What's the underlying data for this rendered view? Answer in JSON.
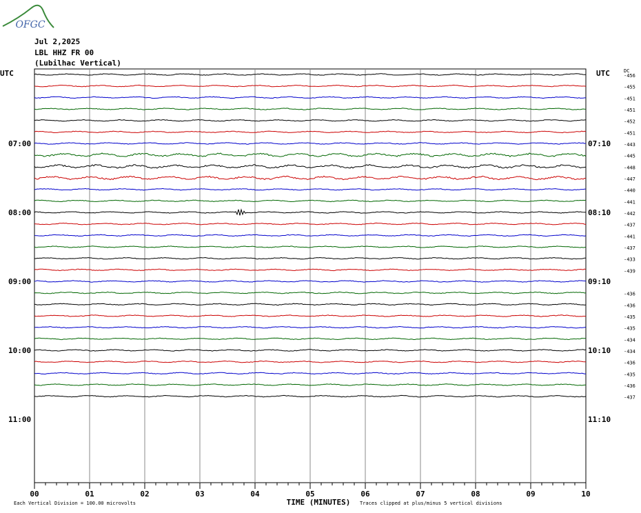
{
  "logo": "OFGC",
  "chart_data": {
    "type": "helicorder",
    "title_lines": [
      "Jul 2,2025",
      "LBL HHZ FR 00",
      "(Lubilhac Vertical)"
    ],
    "left_header": "UTC",
    "right_header": "UTC",
    "dc_header": "DC",
    "hour_labels_left": [
      "07:00",
      "08:00",
      "09:00",
      "10:00",
      "11:00"
    ],
    "hour_labels_right": [
      "07:10",
      "08:10",
      "09:10",
      "10:10",
      "11:10"
    ],
    "x_label": "TIME (MINUTES)",
    "scale_note": "Each Vertical Division =  100.00 microvolts",
    "clip_note": "Traces clipped at plus/minus 5 vertical divisions",
    "xlim": [
      0,
      10
    ],
    "xticks": [
      {
        "value": 0,
        "label": "00"
      },
      {
        "value": 1,
        "label": "01"
      },
      {
        "value": 2,
        "label": "02"
      },
      {
        "value": 3,
        "label": "03"
      },
      {
        "value": 4,
        "label": "04"
      },
      {
        "value": 5,
        "label": "05"
      },
      {
        "value": 6,
        "label": "06"
      },
      {
        "value": 7,
        "label": "07"
      },
      {
        "value": 8,
        "label": "08"
      },
      {
        "value": 9,
        "label": "09"
      },
      {
        "value": 10,
        "label": "10"
      }
    ],
    "trace_colors": [
      "#000000",
      "#cc0000",
      "#0000cc",
      "#006600"
    ],
    "dc_values": [
      -456,
      -455,
      -451,
      -451,
      -452,
      -451,
      -443,
      -445,
      -448,
      -447,
      -440,
      -441,
      -442,
      -437,
      -441,
      -437,
      -433,
      -439,
      null,
      -436,
      -436,
      -435,
      -435,
      -434,
      -434,
      -436,
      -435,
      -436,
      -437
    ]
  }
}
